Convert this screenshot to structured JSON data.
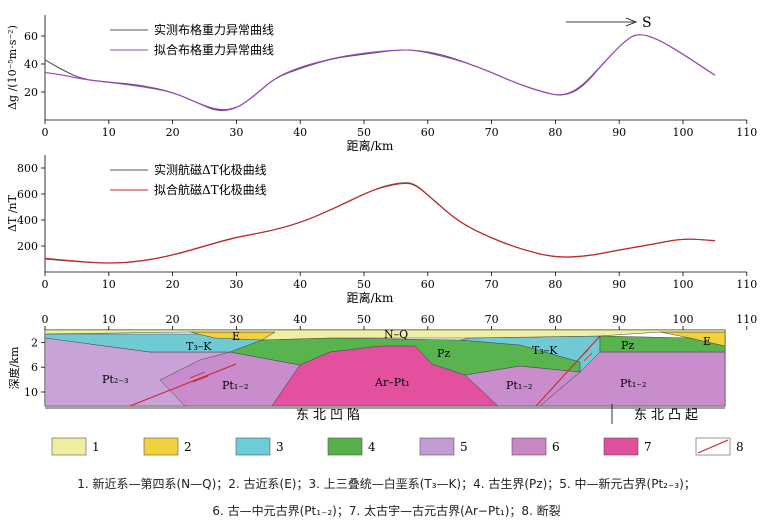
{
  "direction_label": "S",
  "chart_data": [
    {
      "type": "line",
      "xlabel": "距离/km",
      "ylabel": "Δg /(10⁻⁵m·s⁻²)",
      "xlim": [
        0,
        105
      ],
      "ylim": [
        0,
        75
      ],
      "xticks": [
        0,
        10,
        20,
        30,
        40,
        50,
        60,
        70,
        80,
        90,
        100,
        110
      ],
      "yticks": [
        20,
        40,
        60
      ],
      "legend": "top-left",
      "series": [
        {
          "name": "实测布格重力异常曲线",
          "color": "#555555",
          "x": [
            0,
            3,
            6,
            10,
            15,
            20,
            24,
            27,
            30,
            33,
            36,
            40,
            45,
            50,
            55,
            58,
            62,
            66,
            70,
            74,
            78,
            81,
            84,
            88,
            91,
            93,
            96,
            100,
            103,
            105
          ],
          "y": [
            43,
            35,
            29,
            27,
            25,
            20,
            12,
            7,
            8,
            18,
            30,
            37,
            44,
            47,
            50,
            50,
            47,
            41,
            34,
            26,
            20,
            17,
            23,
            43,
            57,
            62,
            58,
            47,
            38,
            32
          ]
        },
        {
          "name": "拟合布格重力异常曲线",
          "color": "#a040c0",
          "x": [
            0,
            3,
            6,
            10,
            15,
            20,
            24,
            27,
            30,
            33,
            36,
            40,
            45,
            50,
            55,
            58,
            62,
            66,
            70,
            74,
            78,
            81,
            84,
            88,
            91,
            93,
            96,
            100,
            103,
            105
          ],
          "y": [
            34,
            32,
            29,
            27,
            24,
            20,
            12,
            6,
            8,
            18,
            30,
            38,
            44,
            48,
            50,
            50,
            46,
            41,
            34,
            26,
            20,
            17,
            22,
            43,
            57,
            62,
            58,
            47,
            38,
            32
          ]
        }
      ]
    },
    {
      "type": "line",
      "xlabel": "距离/km",
      "ylabel": "ΔT /nT",
      "xlim": [
        0,
        105
      ],
      "ylim": [
        0,
        900
      ],
      "xticks": [
        0,
        10,
        20,
        30,
        40,
        50,
        60,
        70,
        80,
        90,
        100,
        110
      ],
      "yticks": [
        200,
        400,
        600,
        800
      ],
      "legend": "top-left",
      "series": [
        {
          "name": "实测航磁ΔT化极曲线",
          "color": "#555555",
          "x": [
            0,
            5,
            10,
            15,
            20,
            25,
            30,
            35,
            40,
            45,
            50,
            53,
            56,
            58,
            61,
            65,
            70,
            75,
            80,
            85,
            90,
            95,
            100,
            105
          ],
          "y": [
            100,
            80,
            65,
            80,
            130,
            200,
            270,
            310,
            380,
            480,
            600,
            660,
            690,
            680,
            550,
            380,
            260,
            170,
            110,
            120,
            170,
            210,
            260,
            240
          ]
        },
        {
          "name": "拟合航磁ΔT化极曲线",
          "color": "#cc2222",
          "x": [
            0,
            5,
            10,
            15,
            20,
            25,
            30,
            35,
            40,
            45,
            50,
            53,
            56,
            58,
            61,
            65,
            70,
            75,
            80,
            85,
            90,
            95,
            100,
            105
          ],
          "y": [
            105,
            82,
            66,
            82,
            128,
            198,
            268,
            312,
            378,
            482,
            602,
            655,
            685,
            675,
            548,
            380,
            258,
            168,
            112,
            122,
            170,
            212,
            258,
            242
          ]
        }
      ]
    },
    {
      "type": "table",
      "ylabel": "深度/km",
      "xticks": [
        0,
        10,
        20,
        30,
        40,
        50,
        60,
        70,
        80,
        90,
        100,
        110
      ],
      "yticks": [
        2,
        6,
        10
      ],
      "unit_labels": [
        "N–Q",
        "E",
        "T₃–K",
        "Pz",
        "Ar–Pt₁",
        "Pt₂₋₃",
        "Pt₁₋₂",
        "Pt₁₋₂",
        "Pt₁₋₂",
        "T₃–K",
        "Pz",
        "E"
      ],
      "regions": [
        "东北凹陷",
        "东北凸起"
      ]
    }
  ],
  "legend_items": [
    {
      "num": "1",
      "color": "#f0eea0"
    },
    {
      "num": "2",
      "color": "#f2d23c"
    },
    {
      "num": "3",
      "color": "#6cccd8"
    },
    {
      "num": "4",
      "color": "#55b04a"
    },
    {
      "num": "5",
      "color": "#c49ad2"
    },
    {
      "num": "6",
      "color": "#c886c2"
    },
    {
      "num": "7",
      "color": "#e04f9c"
    },
    {
      "num": "8",
      "color": "#ffffff"
    }
  ],
  "caption_line1": "1. 新近系—第四系(N—Q)；2. 古近系(E)；3. 上三叠统—白垩系(T₃—K)；4. 古生界(Pz)；5. 中—新元古界(Pt₂₋₃)；",
  "caption_line2": "6. 古—中元古界(Pt₁₋₂)；7. 太古宇—古元古界(Ar−Pt₁)；8. 断裂"
}
